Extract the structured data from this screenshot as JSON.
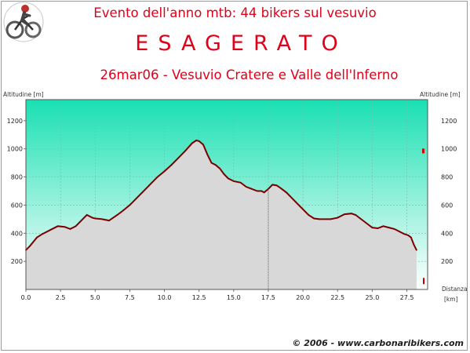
{
  "header": {
    "line1": "Evento dell'anno mtb: 44 bikers sul vesuvio",
    "line2": "ESAGERATO",
    "line3": "26mar06 - Vesuvio Cratere e Valle dell'Inferno"
  },
  "footer": {
    "copyright": "© 2006 - www.carbonaribikers.com"
  },
  "colors": {
    "title": "#e0001a",
    "profile_line": "#7a0000",
    "fill": "#d8d8d8",
    "plot_top": "#19e0b2",
    "plot_bottom": "#ffffff",
    "marker": "#1a8a1a"
  },
  "chart_data": {
    "type": "area",
    "ylabel_left": "Altitudine [m]",
    "ylabel_right": "Altitudine [m]",
    "xlabel_line1": "Distanza",
    "xlabel_line2": "[km]",
    "xlim": [
      0,
      29
    ],
    "ylim": [
      0,
      1350
    ],
    "x_ticks": [
      "0.0",
      "2.5",
      "5.0",
      "7.5",
      "10.0",
      "12.5",
      "15.0",
      "17.5",
      "20.0",
      "22.5",
      "25.0",
      "27.5"
    ],
    "x_tick_values": [
      0,
      2.5,
      5,
      7.5,
      10,
      12.5,
      15,
      17.5,
      20,
      22.5,
      25,
      27.5
    ],
    "y_ticks": [
      "200",
      "400",
      "600",
      "800",
      "1000",
      "1200"
    ],
    "y_tick_values": [
      200,
      400,
      600,
      800,
      1000,
      1200
    ],
    "marker_x": 17.5,
    "grid": true,
    "series": [
      {
        "x": [
          0,
          0.3,
          0.8,
          1.2,
          1.8,
          2.3,
          2.8,
          3.2,
          3.6,
          4.0,
          4.4,
          4.8,
          5.0,
          5.5,
          6.0,
          6.6,
          7.0,
          7.5,
          8.0,
          8.5,
          9.0,
          9.5,
          10.0,
          10.5,
          11.0,
          11.5,
          12.0,
          12.3,
          12.5,
          12.8,
          13.1,
          13.4,
          13.7,
          14.0,
          14.3,
          14.6,
          15.0,
          15.5,
          15.9,
          16.3,
          16.7,
          17.0,
          17.2,
          17.5,
          17.8,
          18.1,
          18.4,
          18.8,
          19.2,
          19.6,
          20.0,
          20.4,
          20.8,
          21.2,
          21.6,
          22.0,
          22.5,
          23.0,
          23.5,
          23.8,
          24.2,
          24.6,
          25.0,
          25.4,
          25.8,
          26.2,
          26.6,
          27.0,
          27.3,
          27.6,
          27.8,
          28.0,
          28.2
        ],
        "y": [
          280,
          310,
          370,
          395,
          425,
          450,
          445,
          430,
          450,
          490,
          530,
          510,
          505,
          500,
          490,
          530,
          560,
          600,
          650,
          700,
          750,
          800,
          840,
          885,
          935,
          985,
          1040,
          1060,
          1055,
          1030,
          960,
          900,
          885,
          860,
          820,
          790,
          770,
          760,
          730,
          715,
          700,
          700,
          690,
          715,
          745,
          740,
          720,
          690,
          650,
          610,
          570,
          530,
          505,
          500,
          500,
          500,
          510,
          535,
          540,
          530,
          500,
          470,
          440,
          435,
          450,
          440,
          430,
          410,
          395,
          385,
          370,
          320,
          280
        ]
      }
    ]
  }
}
